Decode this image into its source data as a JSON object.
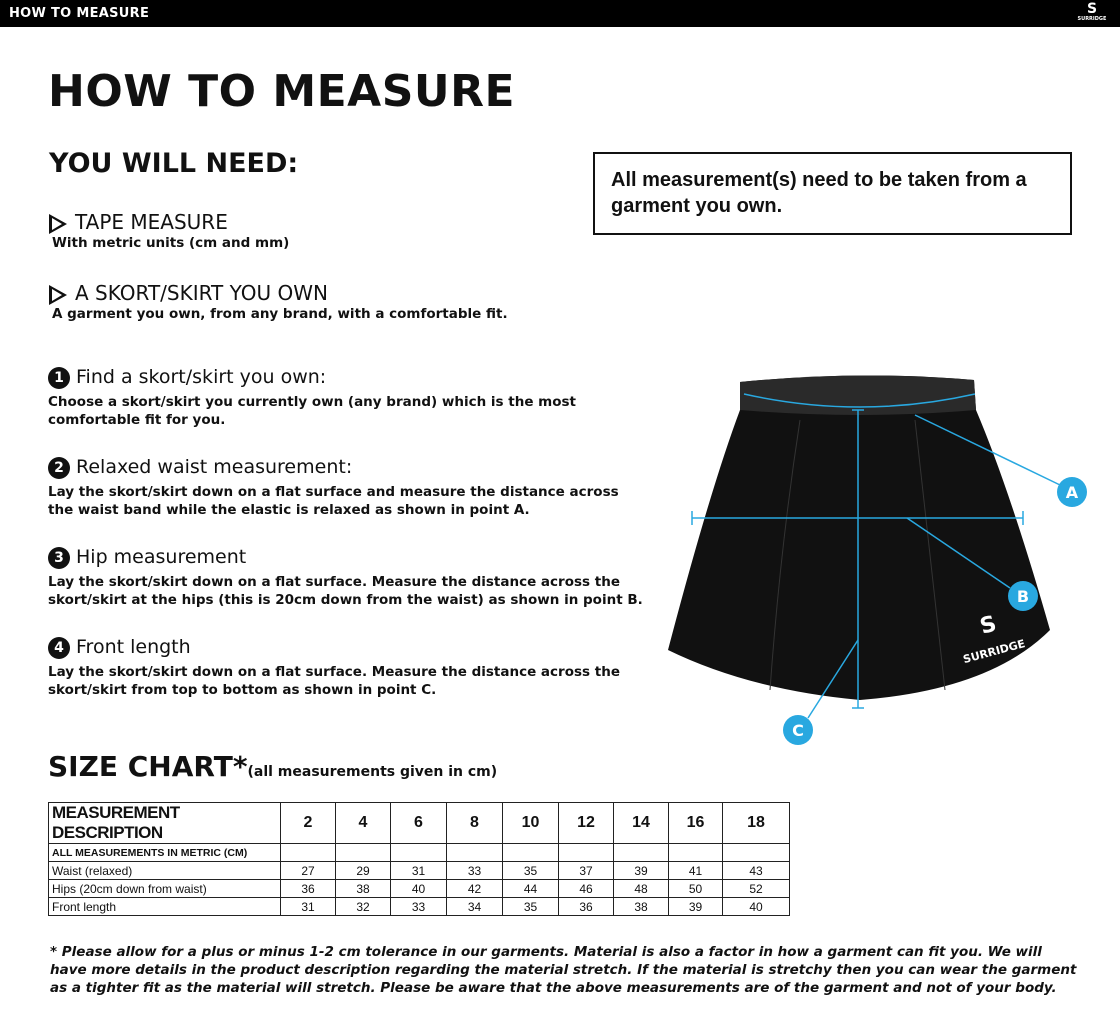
{
  "header": {
    "title": "HOW TO MEASURE",
    "logo_text": "SURRIDGE"
  },
  "page_title": "HOW TO MEASURE",
  "you_will_need": {
    "heading": "YOU WILL NEED:",
    "items": [
      {
        "title": "TAPE MEASURE",
        "subtitle": "With metric units (cm and mm)"
      },
      {
        "title": "A SKORT/SKIRT YOU OWN",
        "subtitle": "A garment you own, from any brand, with a comfortable fit."
      }
    ]
  },
  "notice": "All measurement(s) need to be taken from a garment you own.",
  "steps": [
    {
      "num": "1",
      "title": "Find a skort/skirt you own:",
      "text": "Choose a skort/skirt you currently own (any brand) which is the most comfortable fit for you."
    },
    {
      "num": "2",
      "title": "Relaxed waist measurement:",
      "text": "Lay the skort/skirt down on a flat surface and measure the distance across the waist band while the elastic is relaxed as shown in point A."
    },
    {
      "num": "3",
      "title": "Hip measurement",
      "text": "Lay the skort/skirt down on a flat surface. Measure the distance across the skort/skirt at the hips (this is 20cm down from the waist) as shown in point B."
    },
    {
      "num": "4",
      "title": "Front length",
      "text": "Lay the skort/skirt down on a flat surface. Measure the distance across the skort/skirt from top to bottom as shown in point C."
    }
  ],
  "diagram": {
    "labels": [
      "A",
      "B",
      "C"
    ],
    "accent": "#29a8e0",
    "garment_logo": "SURRIDGE"
  },
  "size_chart": {
    "title": "SIZE CHART*",
    "note": "(all measurements given in cm)",
    "header": [
      "MEASUREMENT DESCRIPTION",
      "2",
      "4",
      "6",
      "8",
      "10",
      "12",
      "14",
      "16",
      "18"
    ],
    "subheader": "ALL MEASUREMENTS IN METRIC (CM)",
    "rows": [
      {
        "label": "Waist (relaxed)",
        "values": [
          "27",
          "29",
          "31",
          "33",
          "35",
          "37",
          "39",
          "41",
          "43"
        ]
      },
      {
        "label": "Hips (20cm down from waist)",
        "values": [
          "36",
          "38",
          "40",
          "42",
          "44",
          "46",
          "48",
          "50",
          "52"
        ]
      },
      {
        "label": "Front length",
        "values": [
          "31",
          "32",
          "33",
          "34",
          "35",
          "36",
          "38",
          "39",
          "40"
        ]
      }
    ]
  },
  "footnote": "* Please allow for a plus or minus 1-2 cm tolerance in our garments. Material is also a factor in how a garment can fit you. We will have more details in the product description regarding the material stretch.  If the material is stretchy then you can wear the garment as a tighter fit as the material will stretch.  Please be aware that the above measurements are of the garment and not of your body."
}
